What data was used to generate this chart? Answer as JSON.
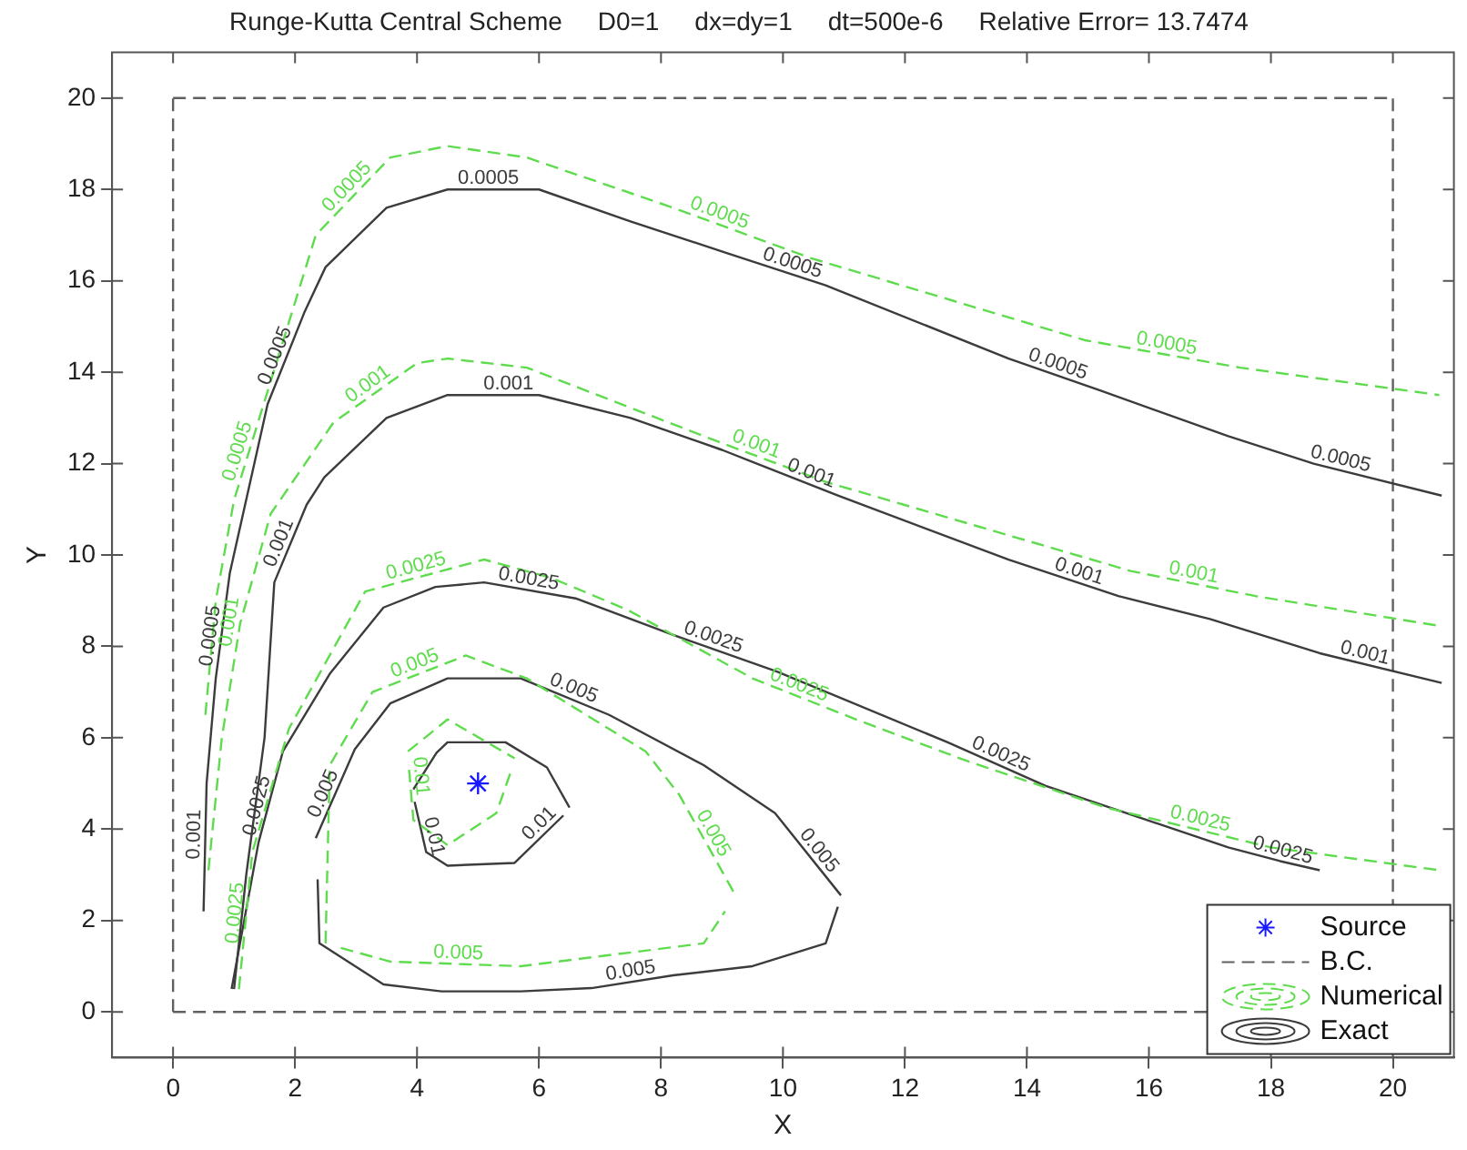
{
  "chart_data": {
    "type": "line",
    "title": "Runge-Kutta Central Scheme     D0=1     dx=dy=1     dt=500e-6     Relative Error= 13.7474",
    "xlabel": "X",
    "ylabel": "Y",
    "xlim": [
      -1,
      21
    ],
    "ylim": [
      -1,
      21
    ],
    "xticks": [
      0,
      2,
      4,
      6,
      8,
      10,
      12,
      14,
      16,
      18,
      20
    ],
    "yticks": [
      0,
      2,
      4,
      6,
      8,
      10,
      12,
      14,
      16,
      18,
      20
    ],
    "grid": false,
    "legend": "bottom right",
    "ref_lines": [
      {
        "axis": "y",
        "value": 0,
        "label": "B.C.",
        "color": "#606060",
        "line_style": "dashed"
      },
      {
        "axis": "y",
        "value": 20,
        "color": "#606060",
        "line_style": "dashed"
      },
      {
        "axis": "x",
        "value": 0,
        "color": "#606060",
        "line_style": "dashed"
      },
      {
        "axis": "x",
        "value": 20,
        "color": "#606060",
        "line_style": "dashed"
      }
    ],
    "series": [
      {
        "name": "Source",
        "type": "scatter",
        "marker": "cross",
        "color": "#1a1aff",
        "x": [
          5
        ],
        "values": [
          5
        ]
      },
      {
        "name": "Numerical",
        "line_style": "dashed",
        "color": "#5fdc4e",
        "x": [
          0.53,
          0.7,
          1.0,
          1.6,
          2.34,
          3.56,
          4.5,
          5.8,
          8.2,
          10.45,
          14.95,
          17.5,
          20.76
        ],
        "values": [
          6.5,
          9.0,
          11.2,
          13.8,
          17.0,
          18.7,
          18.95,
          18.7,
          17.6,
          16.5,
          14.7,
          14.1,
          13.5
        ]
      },
      {
        "line_style": "dashed",
        "color": "#5fdc4e",
        "x": [
          0.58,
          0.8,
          1.1,
          1.6,
          2.63,
          4.0,
          4.5,
          5.8,
          8.9,
          10.7,
          15.7,
          17.75,
          20.76
        ],
        "values": [
          3.1,
          6.0,
          8.5,
          10.9,
          12.9,
          14.2,
          14.3,
          14.1,
          12.5,
          11.6,
          9.65,
          9.1,
          8.45
        ]
      },
      {
        "line_style": "dashed",
        "color": "#5fdc4e",
        "x": [
          1.08,
          1.3,
          1.9,
          3.15,
          5.1,
          6.2,
          7.45,
          9.5,
          11.2,
          13.0,
          15.3,
          18.0,
          20.76
        ],
        "values": [
          0.5,
          3.5,
          6.2,
          9.2,
          9.9,
          9.5,
          8.8,
          7.3,
          6.4,
          5.5,
          4.47,
          3.6,
          3.1
        ]
      },
      {
        "line_style": "dashed",
        "color": "#5fdc4e",
        "x": [
          2.5,
          2.57,
          3.27,
          4.8,
          5.8,
          7.75,
          8.3,
          9.2
        ],
        "values": [
          1.5,
          5.4,
          7.0,
          7.8,
          7.3,
          5.7,
          4.75,
          2.6
        ]
      },
      {
        "line_style": "dashed",
        "color": "#5fdc4e",
        "x": [
          2.75,
          3.56,
          5.7,
          8.7,
          9.05
        ],
        "values": [
          1.4,
          1.1,
          1.0,
          1.5,
          2.2
        ]
      },
      {
        "line_style": "dashed",
        "color": "#5fdc4e",
        "x": [
          3.85,
          4.5,
          5.6
        ],
        "values": [
          5.7,
          6.4,
          5.55
        ]
      },
      {
        "line_style": "dashed",
        "color": "#5fdc4e",
        "x": [
          3.87,
          3.94,
          4.5,
          5.3,
          5.55
        ],
        "values": [
          5.3,
          4.2,
          3.65,
          4.35,
          5.3
        ]
      },
      {
        "name": "Exact",
        "line_style": "solid",
        "color": "#3c3c3c",
        "x": [
          0.5,
          0.55,
          0.7,
          0.93,
          1.55,
          2.15,
          2.5,
          3.5,
          4.5,
          6.0,
          7.5,
          9.1,
          10.7,
          13.7,
          15.2,
          17.3,
          18.7,
          20.8
        ],
        "values": [
          2.2,
          5.0,
          7.3,
          9.6,
          13.3,
          15.3,
          16.3,
          17.6,
          18.0,
          18.0,
          17.3,
          16.6,
          15.9,
          14.3,
          13.6,
          12.6,
          12.0,
          11.3
        ]
      },
      {
        "line_style": "solid",
        "color": "#3c3c3c",
        "x": [
          1.0,
          1.2,
          1.5,
          1.66,
          2.19,
          2.48,
          3.5,
          4.5,
          6.0,
          7.5,
          9.0,
          10.9,
          13.7,
          15.5,
          17.0,
          18.8,
          20.8
        ],
        "values": [
          0.5,
          3.0,
          6.0,
          9.4,
          11.1,
          11.7,
          13.0,
          13.5,
          13.5,
          13.0,
          12.3,
          11.3,
          9.9,
          9.1,
          8.6,
          7.85,
          7.2
        ]
      },
      {
        "line_style": "solid",
        "color": "#3c3c3c",
        "x": [
          0.96,
          1.4,
          1.8,
          2.57,
          3.45,
          4.3,
          5.1,
          6.6,
          8.2,
          9.9,
          12.7,
          14.3,
          17.3,
          18.15,
          18.8
        ],
        "values": [
          0.5,
          3.7,
          5.7,
          7.4,
          8.85,
          9.3,
          9.4,
          9.05,
          8.25,
          7.45,
          5.9,
          4.95,
          3.6,
          3.3,
          3.1
        ]
      },
      {
        "line_style": "solid",
        "color": "#3c3c3c",
        "x": [
          2.34,
          2.98,
          3.56,
          4.5,
          5.7,
          7.15,
          8.7,
          9.87,
          10.95
        ],
        "values": [
          3.8,
          5.75,
          6.75,
          7.3,
          7.3,
          6.5,
          5.4,
          4.35,
          2.55
        ]
      },
      {
        "line_style": "solid",
        "color": "#3c3c3c",
        "x": [
          2.37,
          2.4,
          3.45,
          4.4,
          5.7,
          6.86,
          8.2,
          9.5,
          10.7,
          10.9
        ],
        "values": [
          2.9,
          1.5,
          0.6,
          0.45,
          0.45,
          0.52,
          0.8,
          1.0,
          1.5,
          2.3
        ]
      },
      {
        "line_style": "solid",
        "color": "#3c3c3c",
        "x": [
          3.94,
          4.32,
          4.5,
          5.45,
          6.13,
          6.5
        ],
        "values": [
          4.87,
          5.67,
          5.9,
          5.9,
          5.35,
          4.47
        ]
      },
      {
        "line_style": "solid",
        "color": "#3c3c3c",
        "x": [
          3.96,
          4.15,
          4.5,
          5.6,
          6.4
        ],
        "values": [
          4.6,
          3.5,
          3.2,
          3.26,
          4.3
        ]
      }
    ],
    "annotations": [
      {
        "text": "0.0005",
        "x": 5.17,
        "y": 18.0
      },
      {
        "text": "0.0005",
        "x": 10.1,
        "y": 16.16
      },
      {
        "text": "0.0005",
        "x": 14.45,
        "y": 13.95
      },
      {
        "text": "0.0005",
        "x": 19.1,
        "y": 11.87
      },
      {
        "text": "0.0005",
        "x": 1.84,
        "y": 14.27
      },
      {
        "text": "0.0005",
        "x": 0.79,
        "y": 8.2
      },
      {
        "text": "0.001",
        "x": 5.5,
        "y": 13.5
      },
      {
        "text": "0.001",
        "x": 10.4,
        "y": 11.56
      },
      {
        "text": "0.001",
        "x": 14.8,
        "y": 9.41
      },
      {
        "text": "0.001",
        "x": 19.5,
        "y": 7.62
      },
      {
        "text": "0.001",
        "x": 1.9,
        "y": 10.17
      },
      {
        "text": "0.001",
        "x": 0.53,
        "y": 3.88
      },
      {
        "text": "0.0025",
        "x": 5.8,
        "y": 9.24
      },
      {
        "text": "0.0025",
        "x": 8.8,
        "y": 7.97
      },
      {
        "text": "0.0025",
        "x": 13.5,
        "y": 5.42
      },
      {
        "text": "0.0025",
        "x": 18.15,
        "y": 3.3
      },
      {
        "text": "0.0025",
        "x": 1.55,
        "y": 4.45
      },
      {
        "text": "0.005",
        "x": 2.63,
        "y": 4.68
      },
      {
        "text": "0.005",
        "x": 6.5,
        "y": 6.86
      },
      {
        "text": "0.005",
        "x": 10.45,
        "y": 3.38
      },
      {
        "text": "0.005",
        "x": 7.53,
        "y": 0.66
      },
      {
        "text": "0.01",
        "x": 4.1,
        "y": 3.79
      },
      {
        "text": "0.01",
        "x": 6.13,
        "y": 3.95
      },
      {
        "text": "0.0005",
        "x": 2.98,
        "y": 17.89
      },
      {
        "text": "0.0005",
        "x": 8.9,
        "y": 17.26
      },
      {
        "text": "0.0005",
        "x": 16.26,
        "y": 14.39
      },
      {
        "text": "0.0005",
        "x": 1.23,
        "y": 12.2
      },
      {
        "text": "0.001",
        "x": 3.3,
        "y": 13.54
      },
      {
        "text": "0.001",
        "x": 9.5,
        "y": 12.2
      },
      {
        "text": "0.001",
        "x": 16.7,
        "y": 9.38
      },
      {
        "text": "0.001",
        "x": 1.1,
        "y": 8.5
      },
      {
        "text": "0.0025",
        "x": 4.03,
        "y": 9.52
      },
      {
        "text": "0.0025",
        "x": 10.2,
        "y": 6.93
      },
      {
        "text": "0.0025",
        "x": 16.8,
        "y": 3.99
      },
      {
        "text": "0.0025",
        "x": 1.2,
        "y": 2.14
      },
      {
        "text": "0.005",
        "x": 4.03,
        "y": 7.4
      },
      {
        "text": "0.005",
        "x": 8.7,
        "y": 3.79
      },
      {
        "text": "0.005",
        "x": 4.67,
        "y": 1.05
      },
      {
        "text": "0.01",
        "x": 3.88,
        "y": 5.14
      }
    ]
  }
}
